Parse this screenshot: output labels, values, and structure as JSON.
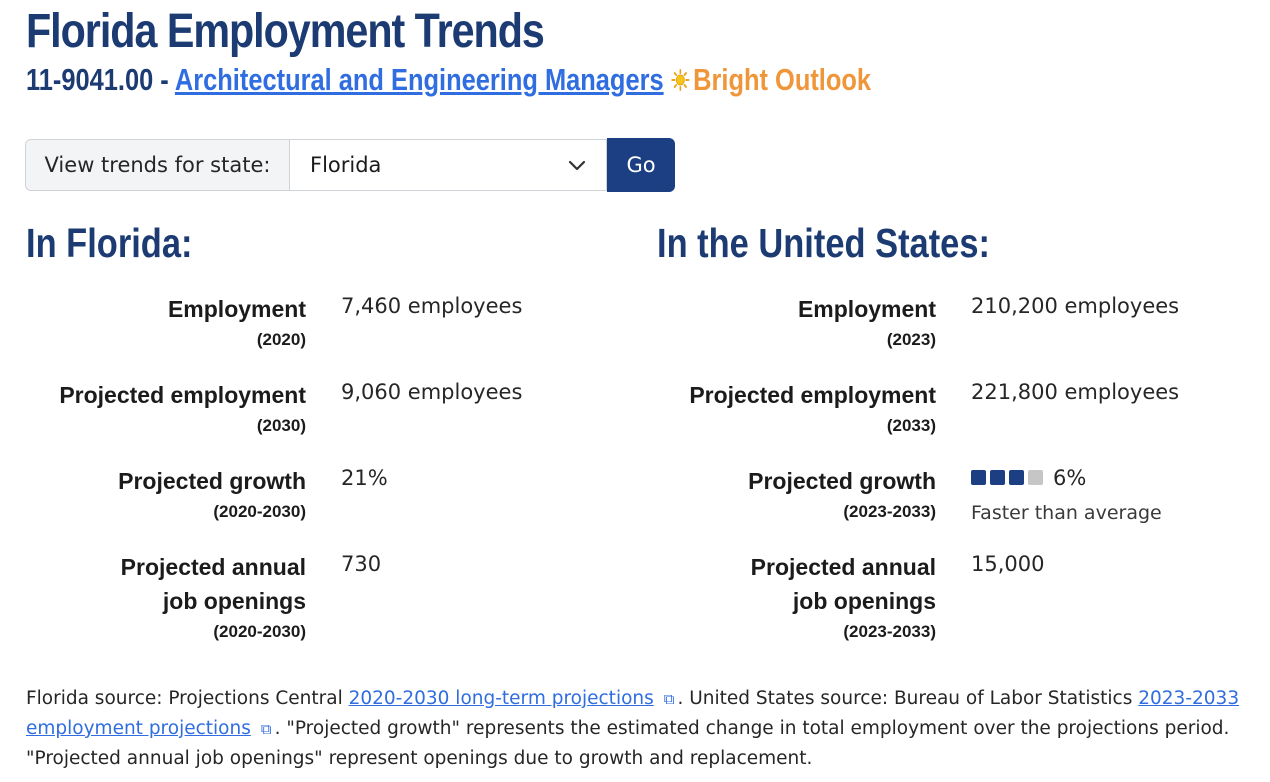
{
  "page": {
    "title": "Florida Employment Trends",
    "occupation_code": "11-9041.00",
    "separator": " - ",
    "occupation_name": "Architectural and Engineering Managers",
    "outlook_label": "Bright Outlook",
    "outlook_icon": "sun-icon",
    "colors": {
      "heading": "#1c3b72",
      "link": "#2f6de0",
      "outlook": "#f0963a",
      "button": "#1c3f84"
    }
  },
  "state_form": {
    "label": "View trends for state:",
    "selected_state": "Florida",
    "button_label": "Go"
  },
  "florida": {
    "heading": "In Florida:",
    "employment_label": "Employment",
    "employment_year": "(2020)",
    "employment_value": "7,460 employees",
    "projected_employment_label": "Projected employment",
    "projected_employment_year": "(2030)",
    "projected_employment_value": "9,060 employees",
    "projected_growth_label": "Projected growth",
    "projected_growth_period": "(2020-2030)",
    "projected_growth_value": "21%",
    "openings_label_line1": "Projected annual",
    "openings_label_line2": "job openings",
    "openings_period": "(2020-2030)",
    "openings_value": "730"
  },
  "us": {
    "heading": "In the United States:",
    "employment_label": "Employment",
    "employment_year": "(2023)",
    "employment_value": "210,200 employees",
    "projected_employment_label": "Projected employment",
    "projected_employment_year": "(2033)",
    "projected_employment_value": "221,800 employees",
    "projected_growth_label": "Projected growth",
    "projected_growth_period": "(2023-2033)",
    "projected_growth_value": "6%",
    "projected_growth_rating": 3,
    "projected_growth_rating_max": 4,
    "projected_growth_description": "Faster than average",
    "openings_label_line1": "Projected annual",
    "openings_label_line2": "job openings",
    "openings_period": "(2023-2033)",
    "openings_value": "15,000"
  },
  "source": {
    "fl_prefix": "Florida source: Projections Central ",
    "fl_link": "2020-2030 long-term projections",
    "us_prefix": ". United States source: Bureau of Labor Statistics ",
    "us_link": "2023-2033 employment projections",
    "suffix": ". \"Projected growth\" represents the estimated change in total employment over the projections period. \"Projected annual job openings\" represent openings due to growth and replacement."
  }
}
